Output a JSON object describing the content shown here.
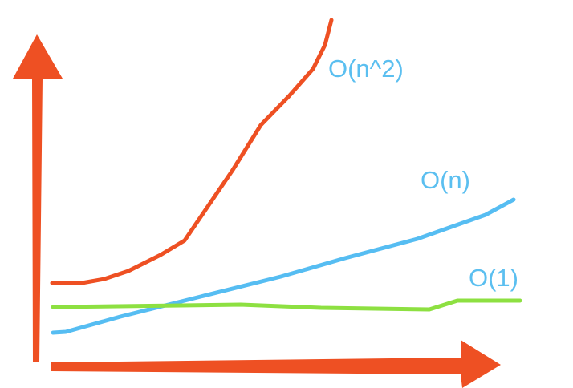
{
  "curves": [
    {
      "label": "O(n^2)"
    },
    {
      "label": "O(n)"
    },
    {
      "label": "O(1)"
    }
  ]
}
